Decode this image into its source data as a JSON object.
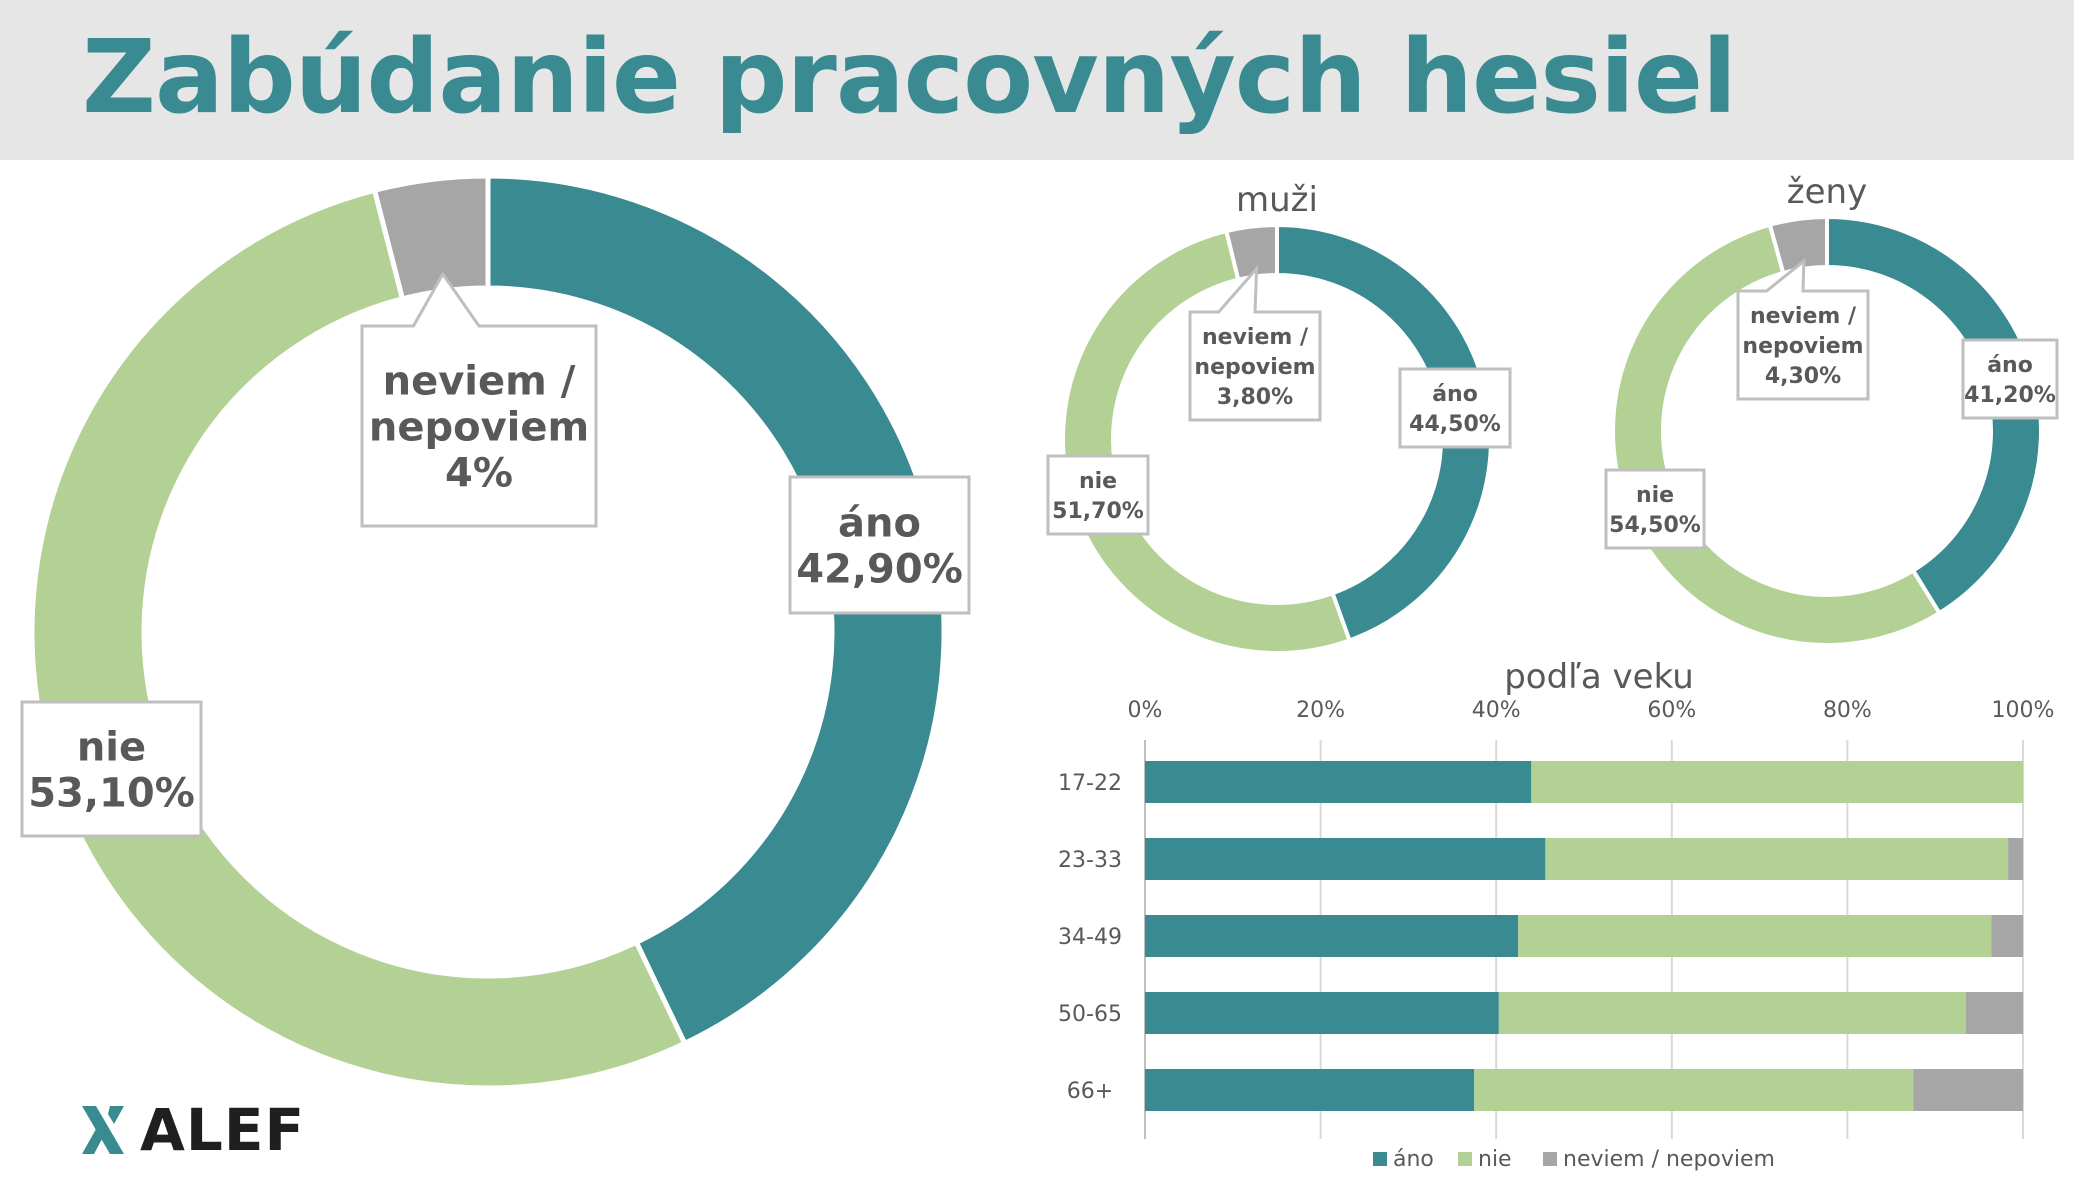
{
  "page": {
    "title": "Zabúdanie pracovných hesiel",
    "logo_text": "ALEF"
  },
  "colors": {
    "ano": "#3a8a91",
    "nie": "#b3d195",
    "neviem": "#a6a6a6",
    "title": "#3a8a91",
    "title_bar": "#e6e6e6"
  },
  "chart_data": [
    {
      "type": "pie",
      "variant": "donut",
      "title": "",
      "slices": [
        {
          "key": "ano",
          "name": "áno",
          "value": 42.9,
          "label": "42,90%"
        },
        {
          "key": "nie",
          "name": "nie",
          "value": 53.1,
          "label": "53,10%"
        },
        {
          "key": "neviem",
          "name": "neviem / nepoviem",
          "value": 4,
          "label": "4%"
        }
      ]
    },
    {
      "type": "pie",
      "variant": "donut",
      "title": "muži",
      "slices": [
        {
          "key": "ano",
          "name": "áno",
          "value": 44.5,
          "label": "44,50%"
        },
        {
          "key": "nie",
          "name": "nie",
          "value": 51.7,
          "label": "51,70%"
        },
        {
          "key": "neviem",
          "name": "neviem / nepoviem",
          "value": 3.8,
          "label": "3,80%"
        }
      ]
    },
    {
      "type": "pie",
      "variant": "donut",
      "title": "ženy",
      "slices": [
        {
          "key": "ano",
          "name": "áno",
          "value": 41.2,
          "label": "41,20%"
        },
        {
          "key": "nie",
          "name": "nie",
          "value": 54.5,
          "label": "54,50%"
        },
        {
          "key": "neviem",
          "name": "neviem / nepoviem",
          "value": 4.3,
          "label": "4,30%"
        }
      ]
    },
    {
      "type": "bar",
      "orientation": "horizontal",
      "stacked": "percent",
      "title": "podľa veku",
      "categories": [
        "17-22",
        "23-33",
        "34-49",
        "50-65",
        "66+"
      ],
      "series": [
        {
          "key": "ano",
          "name": "áno",
          "values": [
            44,
            45.6,
            42.5,
            40.3,
            37.5
          ]
        },
        {
          "key": "nie",
          "name": "nie",
          "values": [
            56,
            52.7,
            53.9,
            53.2,
            50
          ]
        },
        {
          "key": "neviem",
          "name": "neviem / nepoviem",
          "values": [
            0,
            1.7,
            3.6,
            6.5,
            12.5
          ]
        }
      ],
      "xlim": [
        0,
        100
      ],
      "x_ticks": [
        "0%",
        "20%",
        "40%",
        "60%",
        "80%",
        "100%"
      ],
      "grid": true,
      "legend": "bottom"
    }
  ]
}
